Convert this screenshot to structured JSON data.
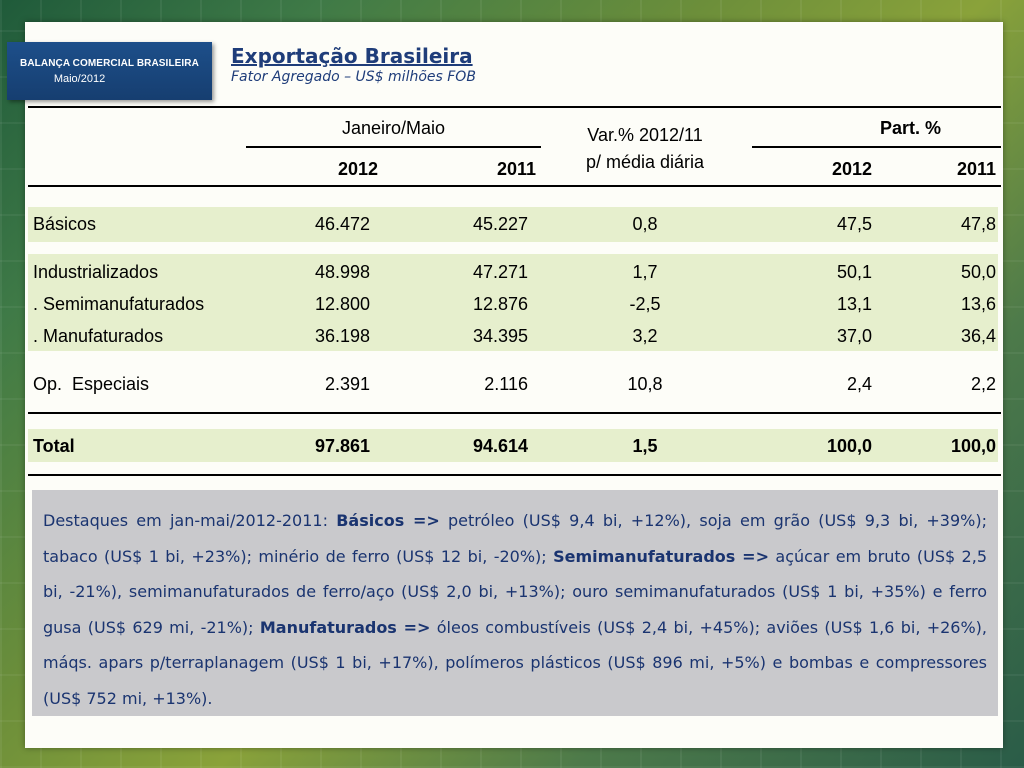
{
  "badge": {
    "line1": "BALANÇA COMERCIAL BRASILEIRA",
    "line2": "Maio/2012"
  },
  "title": "Exportação Brasileira",
  "subtitle": "Fator Agregado – US$ milhões FOB",
  "header": {
    "group_jan_maio": "Janeiro/Maio",
    "var_line1": "Var.% 2012/11",
    "var_line2": "p/ média diária",
    "group_part": "Part. %",
    "y2012": "2012",
    "y2011": "2011",
    "p2012": "2012",
    "p2011": "2011"
  },
  "rows": [
    {
      "label": "Básicos",
      "v2012": "46.472",
      "v2011": "45.227",
      "var": "0,8",
      "p2012": "47,5",
      "p2011": "47,8"
    },
    {
      "label": "Industrializados",
      "v2012": "48.998",
      "v2011": "47.271",
      "var": "1,7",
      "p2012": "50,1",
      "p2011": "50,0"
    },
    {
      "label": ". Semimanufaturados",
      "v2012": "12.800",
      "v2011": "12.876",
      "var": "-2,5",
      "p2012": "13,1",
      "p2011": "13,6"
    },
    {
      "label": ". Manufaturados",
      "v2012": "36.198",
      "v2011": "34.395",
      "var": "3,2",
      "p2012": "37,0",
      "p2011": "36,4"
    },
    {
      "label": "Op.  Especiais",
      "v2012": "2.391",
      "v2011": "2.116",
      "var": "10,8",
      "p2012": "2,4",
      "p2011": "2,2"
    },
    {
      "label": "Total",
      "v2012": "97.861",
      "v2011": "94.614",
      "var": "1,5",
      "p2012": "100,0",
      "p2011": "100,0"
    }
  ],
  "notes": {
    "intro": "Destaques em jan-mai/2012-2011: ",
    "k1": "Básicos =>",
    "t1": " petróleo (US$ 9,4 bi, +12%), soja em grão (US$ 9,3 bi, +39%); tabaco (US$ 1 bi, +23%); minério de ferro (US$ 12 bi, -20%); ",
    "k2": "Semimanufaturados =>",
    "t2": " açúcar em bruto (US$ 2,5 bi, -21%), semimanufaturados de ferro/aço (US$ 2,0 bi, +13%); ouro semimanufaturados (US$ 1 bi, +35%) e ferro gusa (US$ 629 mi, -21%); ",
    "k3": "Manufaturados =>",
    "t3": " óleos combustíveis (US$ 2,4 bi, +45%); aviões (US$ 1,6 bi, +26%), máqs. apars p/terraplanagem (US$ 1 bi, +17%), polímeros plásticos (US$ 896 mi, +5%) e bombas e compressores (US$ 752 mi, +13%)."
  }
}
